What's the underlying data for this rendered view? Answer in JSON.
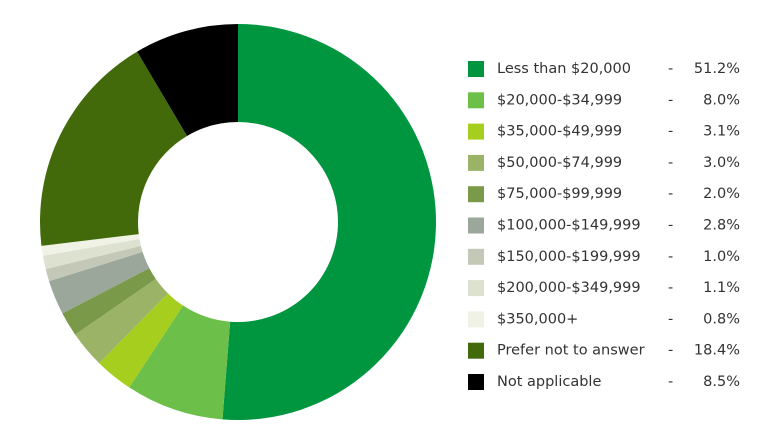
{
  "chart_data": {
    "type": "donut",
    "categories": [
      "Less than $20,000",
      "$20,000-$34,999",
      "$35,000-$49,999",
      "$50,000-$74,999",
      "$75,000-$99,999",
      "$100,000-$149,999",
      "$150,000-$199,999",
      "$200,000-$349,999",
      "$350,000+",
      "Prefer not to answer",
      "Not applicable"
    ],
    "values": [
      51.2,
      8.0,
      3.1,
      3.0,
      2.0,
      2.8,
      1.0,
      1.1,
      0.8,
      18.4,
      8.5
    ],
    "value_labels": [
      "51.2%",
      "8.0%",
      "3.1%",
      "3.0%",
      "2.0%",
      "2.8%",
      "1.0%",
      "1.1%",
      "0.8%",
      "18.4%",
      "8.5%"
    ],
    "colors": [
      "#00953f",
      "#6cc04a",
      "#a6ce1f",
      "#9bb367",
      "#7a9a4a",
      "#9aa79a",
      "#c3c9b6",
      "#dde2d0",
      "#f0f2e6",
      "#436a0a",
      "#000000"
    ],
    "legend_separator": "-",
    "legend": "right"
  }
}
